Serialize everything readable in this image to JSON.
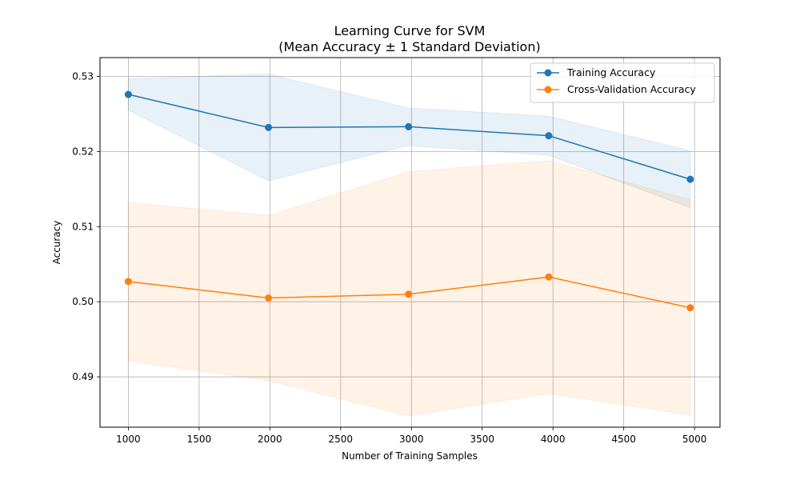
{
  "chart_data": {
    "type": "line",
    "title": "Learning Curve for SVM",
    "subtitle": "(Mean Accuracy ± 1 Standard Deviation)",
    "xlabel": "Number of Training Samples",
    "ylabel": "Accuracy",
    "x": [
      1000,
      1990,
      2980,
      3970,
      4970
    ],
    "xlim": [
      800,
      5180
    ],
    "ylim": [
      0.4833,
      0.5325
    ],
    "xticks": [
      1000,
      1500,
      2000,
      2500,
      3000,
      3500,
      4000,
      4500,
      5000
    ],
    "xtick_labels": [
      "1000",
      "1500",
      "2000",
      "2500",
      "3000",
      "3500",
      "4000",
      "4500",
      "5000"
    ],
    "yticks": [
      0.49,
      0.5,
      0.51,
      0.52,
      0.53
    ],
    "ytick_labels": [
      "0.49",
      "0.50",
      "0.51",
      "0.52",
      "0.53"
    ],
    "grid": true,
    "legend_position": "top-right",
    "series": [
      {
        "name": "Training Accuracy",
        "color": "#1f77b4",
        "values": [
          0.5276,
          0.5232,
          0.5233,
          0.5221,
          0.5163
        ],
        "lower": [
          0.5255,
          0.5161,
          0.5208,
          0.5195,
          0.5125
        ],
        "upper": [
          0.5297,
          0.5303,
          0.5258,
          0.5247,
          0.5201
        ]
      },
      {
        "name": "Cross-Validation Accuracy",
        "color": "#ff7f0e",
        "values": [
          0.5027,
          0.5005,
          0.501,
          0.5033,
          0.4992
        ],
        "lower": [
          0.4921,
          0.4895,
          0.4848,
          0.4878,
          0.4849
        ],
        "upper": [
          0.5132,
          0.5115,
          0.5173,
          0.5188,
          0.5136
        ]
      }
    ]
  }
}
